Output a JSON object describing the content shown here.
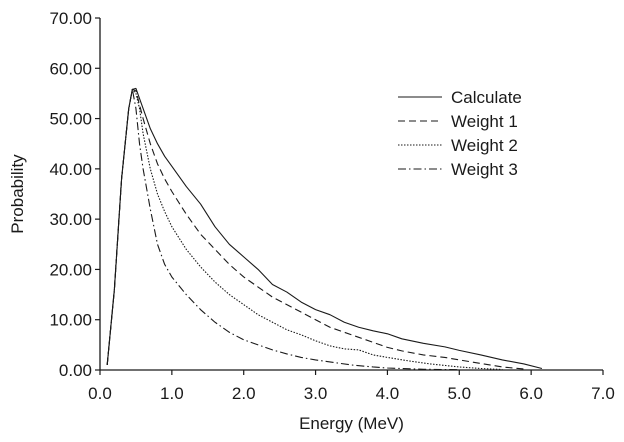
{
  "chart_data": {
    "type": "line",
    "title": "",
    "xlabel": "Energy (MeV)",
    "ylabel": "Probability",
    "xlim": [
      0,
      7
    ],
    "ylim": [
      0,
      70
    ],
    "xticks": [
      "0.0",
      "1.0",
      "2.0",
      "3.0",
      "4.0",
      "5.0",
      "6.0",
      "7.0"
    ],
    "yticks": [
      "0.00",
      "10.00",
      "20.00",
      "30.00",
      "40.00",
      "50.00",
      "60.00",
      "70.00"
    ],
    "grid": false,
    "legend_position": "top-right",
    "series": [
      {
        "name": "Calculate",
        "dash": "solid",
        "x": [
          0.1,
          0.2,
          0.3,
          0.4,
          0.45,
          0.5,
          0.6,
          0.7,
          0.8,
          0.9,
          1.0,
          1.2,
          1.4,
          1.6,
          1.8,
          2.0,
          2.2,
          2.4,
          2.6,
          2.8,
          3.0,
          3.2,
          3.4,
          3.6,
          3.8,
          4.0,
          4.2,
          4.5,
          4.8,
          5.0,
          5.3,
          5.6,
          5.9,
          6.15
        ],
        "y": [
          1.0,
          16.0,
          38.0,
          52.0,
          55.8,
          56.0,
          52.0,
          48.0,
          45.0,
          42.5,
          40.5,
          36.5,
          33.0,
          28.5,
          25.0,
          22.5,
          20.0,
          17.0,
          15.5,
          13.5,
          12.0,
          11.0,
          9.5,
          8.5,
          7.8,
          7.2,
          6.2,
          5.3,
          4.6,
          3.9,
          3.0,
          2.0,
          1.2,
          0.3
        ]
      },
      {
        "name": "Weight 1",
        "dash": "dashed",
        "x": [
          0.1,
          0.2,
          0.3,
          0.4,
          0.45,
          0.5,
          0.6,
          0.7,
          0.8,
          0.9,
          1.0,
          1.2,
          1.4,
          1.6,
          1.8,
          2.0,
          2.2,
          2.4,
          2.6,
          2.8,
          3.0,
          3.2,
          3.4,
          3.6,
          3.8,
          4.0,
          4.2,
          4.5,
          4.8,
          5.0,
          5.3,
          5.6,
          5.9
        ],
        "y": [
          1.0,
          16.0,
          38.0,
          52.0,
          55.8,
          55.5,
          50.0,
          45.0,
          41.0,
          38.0,
          35.5,
          31.0,
          27.0,
          24.0,
          21.0,
          18.5,
          16.5,
          14.5,
          13.0,
          11.5,
          10.0,
          8.5,
          7.5,
          6.5,
          5.5,
          4.5,
          3.8,
          3.0,
          2.5,
          2.0,
          1.3,
          0.6,
          0.2
        ]
      },
      {
        "name": "Weight 2",
        "dash": "dotted",
        "x": [
          0.1,
          0.2,
          0.3,
          0.4,
          0.45,
          0.5,
          0.55,
          0.6,
          0.7,
          0.8,
          0.9,
          1.0,
          1.2,
          1.4,
          1.6,
          1.8,
          2.0,
          2.2,
          2.4,
          2.6,
          2.8,
          3.0,
          3.2,
          3.4,
          3.6,
          3.8,
          4.0,
          4.3,
          4.6,
          5.0,
          5.3,
          5.6
        ],
        "y": [
          1.0,
          16.0,
          38.0,
          52.0,
          55.8,
          55.0,
          52.0,
          47.0,
          40.0,
          35.0,
          31.5,
          28.5,
          24.0,
          20.5,
          17.5,
          15.0,
          13.0,
          11.0,
          9.5,
          8.0,
          7.0,
          5.8,
          4.8,
          4.2,
          4.0,
          3.0,
          2.5,
          1.8,
          1.2,
          0.6,
          0.3,
          0.1
        ]
      },
      {
        "name": "Weight 3",
        "dash": "dash-dot",
        "x": [
          0.1,
          0.2,
          0.3,
          0.4,
          0.45,
          0.5,
          0.55,
          0.6,
          0.7,
          0.8,
          0.9,
          1.0,
          1.2,
          1.4,
          1.6,
          1.8,
          2.0,
          2.2,
          2.4,
          2.6,
          2.8,
          3.0,
          3.2,
          3.5,
          3.8,
          4.0,
          4.5,
          5.0
        ],
        "y": [
          1.0,
          16.0,
          38.0,
          52.0,
          55.8,
          52.0,
          45.0,
          40.0,
          32.0,
          25.0,
          21.0,
          18.5,
          15.0,
          12.0,
          9.5,
          7.5,
          6.0,
          5.0,
          4.0,
          3.2,
          2.5,
          2.0,
          1.6,
          1.0,
          0.6,
          0.4,
          0.15,
          0.05
        ]
      }
    ]
  }
}
